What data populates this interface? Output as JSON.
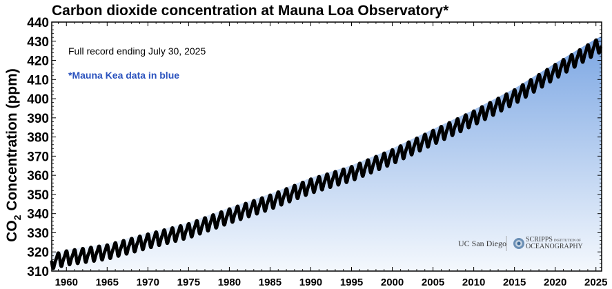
{
  "chart_data": {
    "type": "scatter",
    "title": "Carbon dioxide concentration at Mauna Loa Observatory*",
    "ylabel": "CO",
    "ylabel_sub": "2",
    "ylabel_rest": " Concentration (ppm)",
    "xlim": [
      1958.2,
      2025.7
    ],
    "ylim": [
      310,
      440
    ],
    "x_ticks": [
      1960,
      1965,
      1970,
      1975,
      1980,
      1985,
      1990,
      1995,
      2000,
      2005,
      2010,
      2015,
      2020,
      2025
    ],
    "y_ticks": [
      310,
      320,
      330,
      340,
      350,
      360,
      370,
      380,
      390,
      400,
      410,
      420,
      430,
      440
    ],
    "x_tick_labels": [
      "1960",
      "1965",
      "1970",
      "1975",
      "1980",
      "1985",
      "1990",
      "1995",
      "2000",
      "2005",
      "2010",
      "2015",
      "2020",
      "2025"
    ],
    "y_tick_labels": [
      "310",
      "320",
      "330",
      "340",
      "350",
      "360",
      "370",
      "380",
      "390",
      "400",
      "410",
      "420",
      "430",
      "440"
    ],
    "trend_points": [
      {
        "year": 1958.2,
        "ppm": 315.0
      },
      {
        "year": 1960,
        "ppm": 316.9
      },
      {
        "year": 1965,
        "ppm": 320.0
      },
      {
        "year": 1970,
        "ppm": 325.7
      },
      {
        "year": 1975,
        "ppm": 331.1
      },
      {
        "year": 1980,
        "ppm": 338.8
      },
      {
        "year": 1985,
        "ppm": 346.0
      },
      {
        "year": 1990,
        "ppm": 354.4
      },
      {
        "year": 1995,
        "ppm": 360.9
      },
      {
        "year": 2000,
        "ppm": 369.7
      },
      {
        "year": 2005,
        "ppm": 379.8
      },
      {
        "year": 2010,
        "ppm": 389.9
      },
      {
        "year": 2015,
        "ppm": 401.0
      },
      {
        "year": 2020,
        "ppm": 414.2
      },
      {
        "year": 2025,
        "ppm": 427.0
      },
      {
        "year": 2025.58,
        "ppm": 428.0
      }
    ],
    "seasonal_amplitude_ppm": 3.3,
    "series": [
      {
        "name": "Mauna Loa (black)",
        "color": "#000000"
      },
      {
        "name": "Mauna Kea (blue)",
        "color": "#2a52be"
      }
    ],
    "fill_gradient": {
      "top": "#7ba6e3",
      "bottom": "#f4f8fd"
    },
    "annotations": [
      "Full record ending July 30, 2025",
      "*Mauna Kea data in blue"
    ],
    "grid": false
  },
  "logos": {
    "ucsd": "UC San Diego",
    "scripps_line1": "SCRIPPS",
    "scripps_line1_small": "INSTITUTION OF",
    "scripps_line2": "OCEANOGRAPHY"
  }
}
